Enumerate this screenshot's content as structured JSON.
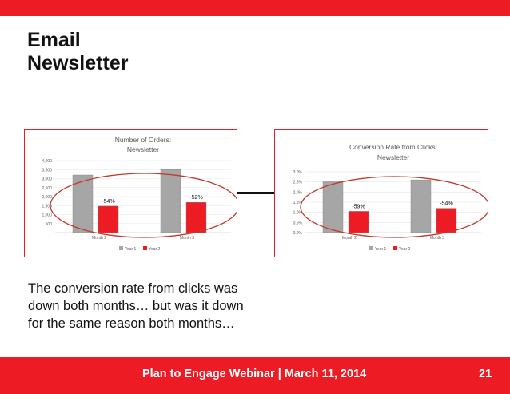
{
  "slide": {
    "title_line1": "Email",
    "title_line2": "Newsletter",
    "body_line1": "The conversion rate from clicks was",
    "body_line2": "down both months… but was it down",
    "body_line3": "for the same reason both months…",
    "footer_text": "Plan to Engage Webinar | March 11, 2014",
    "page_number": "21"
  },
  "colors": {
    "accent": "#ed1c24",
    "series_year1": "#a6a6a6",
    "series_year2": "#ed1c24",
    "highlight_ellipse": "#c0392b"
  },
  "chart_data": [
    {
      "type": "bar",
      "title_lines": [
        "Number of Orders:",
        "Newsletter"
      ],
      "categories": [
        "Month 2",
        "Month 3"
      ],
      "series": [
        {
          "name": "Year 1",
          "values": [
            3200,
            3500
          ]
        },
        {
          "name": "Year 2",
          "values": [
            1470,
            1680
          ]
        }
      ],
      "data_labels": [
        "-54%",
        "-52%"
      ],
      "y_ticks": [
        "-",
        "500",
        "1,000",
        "1,500",
        "2,000",
        "2,500",
        "3,000",
        "3,500",
        "4,000"
      ],
      "ylim": [
        0,
        4000
      ],
      "grid": true,
      "legend_position": "bottom"
    },
    {
      "type": "bar",
      "title_lines": [
        "Conversion Rate from Clicks:",
        "Newsletter"
      ],
      "categories": [
        "Month 2",
        "Month 3"
      ],
      "series": [
        {
          "name": "Year 1",
          "values": [
            2.55,
            2.6
          ]
        },
        {
          "name": "Year 2",
          "values": [
            1.05,
            1.2
          ]
        }
      ],
      "data_labels": [
        "-59%",
        "-54%"
      ],
      "y_ticks": [
        "0.0%",
        "0.5%",
        "1.0%",
        "1.5%",
        "2.0%",
        "2.5%",
        "3.0%"
      ],
      "ylim": [
        0,
        3.0
      ],
      "grid": true,
      "legend_position": "bottom"
    }
  ]
}
